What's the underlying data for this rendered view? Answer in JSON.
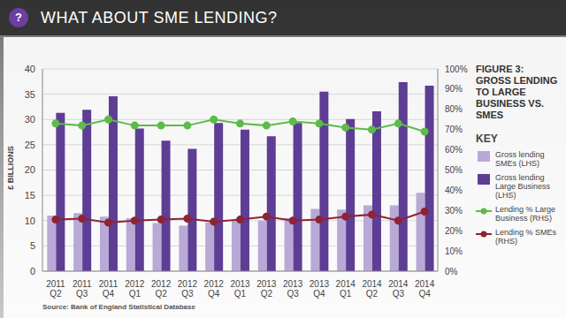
{
  "header": {
    "icon": "?",
    "title": "WHAT ABOUT SME LENDING?"
  },
  "chart_data": {
    "type": "bar",
    "title": "FIGURE 3: GROSS LENDING TO LARGE BUSINESS VS. SMES",
    "ylabel": "£ BILLIONS",
    "legend_title": "KEY",
    "source": "Source: Bank of England Statistical Database",
    "legend": "right",
    "grid": true,
    "categories": [
      "2011 Q2",
      "2011 Q3",
      "2011 Q4",
      "2012 Q1",
      "2012 Q2",
      "2012 Q3",
      "2012 Q4",
      "2013 Q1",
      "2013 Q2",
      "2013 Q3",
      "2013 Q4",
      "2014 Q1",
      "2014 Q2",
      "2014 Q3",
      "2014 Q4"
    ],
    "ylim": [
      0,
      40
    ],
    "yticks": [
      0,
      5,
      10,
      15,
      20,
      25,
      30,
      35,
      40
    ],
    "y2lim": [
      0,
      100
    ],
    "y2ticks": [
      {
        "value": 0,
        "label": "0%"
      },
      {
        "value": 10,
        "label": "10%"
      },
      {
        "value": 20,
        "label": "20%"
      },
      {
        "value": 30,
        "label": "30%"
      },
      {
        "value": 40,
        "label": "40%"
      },
      {
        "value": 50,
        "label": "50%"
      },
      {
        "value": 60,
        "label": "60%"
      },
      {
        "value": 70,
        "label": "70%"
      },
      {
        "value": 80,
        "label": "80%"
      },
      {
        "value": 90,
        "label": "90%"
      },
      {
        "value": 100,
        "label": "100%"
      }
    ],
    "series": [
      {
        "name": "Gross lending SMEs (LHS)",
        "type": "bar",
        "color": "#b9a9d6",
        "values": [
          11.0,
          11.5,
          10.8,
          10.5,
          9.5,
          9.0,
          9.6,
          10.0,
          10.0,
          10.5,
          12.3,
          12.2,
          13.0,
          13.0,
          15.5
        ]
      },
      {
        "name": "Gross lending Large Business (LHS)",
        "type": "bar",
        "color": "#5e3d95",
        "values": [
          31.3,
          31.9,
          34.6,
          28.2,
          25.8,
          24.2,
          29.3,
          28.0,
          26.7,
          29.3,
          35.5,
          30.1,
          31.6,
          37.4,
          36.7
        ]
      },
      {
        "name": "Lending % Large Business (RHS)",
        "type": "line",
        "axis": "y2",
        "color": "#5dbb4a",
        "marker": "circle",
        "values": [
          73,
          72,
          75,
          72,
          72,
          72,
          75,
          73,
          72,
          74,
          73,
          71,
          70,
          73,
          69
        ]
      },
      {
        "name": "Lending % SMEs (RHS)",
        "type": "line",
        "axis": "y2",
        "color": "#8e2335",
        "marker": "circle",
        "values": [
          25.5,
          26,
          24,
          25,
          25.5,
          26,
          24.5,
          25.5,
          27,
          25,
          25.5,
          27,
          28,
          25,
          29.5
        ]
      }
    ]
  }
}
